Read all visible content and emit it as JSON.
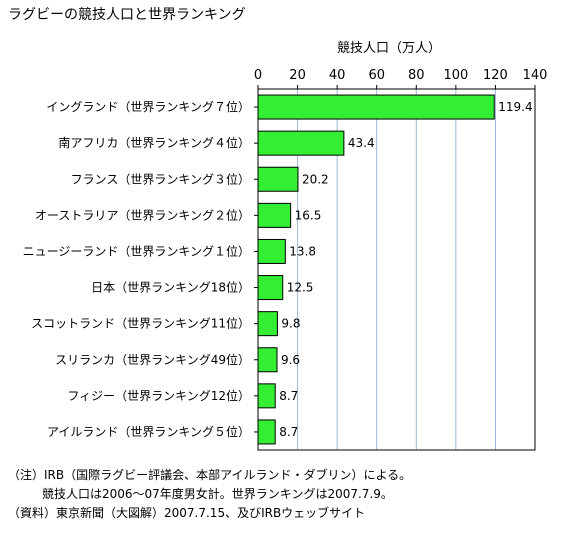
{
  "chart_data": {
    "type": "bar",
    "orientation": "horizontal",
    "title": "ラグビーの競技人口と世界ランキング",
    "xlabel": "競技人口（万人）",
    "ylabel": "",
    "xlim": [
      0,
      140
    ],
    "x_ticks": [
      0,
      20,
      40,
      60,
      80,
      100,
      120,
      140
    ],
    "grid": true,
    "bar_color": "#33ee33",
    "categories": [
      "イングランド（世界ランキング７位）",
      "南アフリカ（世界ランキング４位）",
      "フランス（世界ランキング３位）",
      "オーストラリア（世界ランキング２位）",
      "ニュージーランド（世界ランキング１位）",
      "日本（世界ランキング18位）",
      "スコットランド（世界ランキング11位）",
      "スリランカ（世界ランキング49位）",
      "フィジー（世界ランキング12位）",
      "アイルランド（世界ランキング５位）"
    ],
    "values": [
      119.4,
      43.4,
      20.2,
      16.5,
      13.8,
      12.5,
      9.8,
      9.6,
      8.7,
      8.7
    ],
    "value_labels": [
      "119.4",
      "43.4",
      "20.2",
      "16.5",
      "13.8",
      "12.5",
      "9.8",
      "9.6",
      "8.7",
      "8.7"
    ]
  },
  "notes": {
    "line1": "（注）IRB（国際ラグビー評議会、本部アイルランド・ダブリン）による。",
    "line2": "競技人口は2006～07年度男女計。世界ランキングは2007.7.9。",
    "line3": "（資料）東京新聞（大図解）2007.7.15、及びIRBウェッブサイト"
  }
}
